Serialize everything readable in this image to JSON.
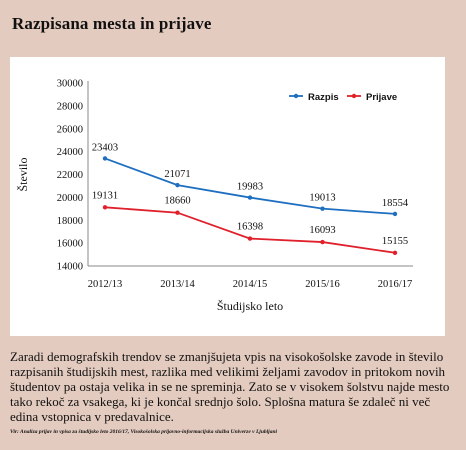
{
  "title": "Razpisana mesta in prijave",
  "chart_data": {
    "type": "line",
    "categories": [
      "2012/13",
      "2013/14",
      "2014/15",
      "2015/16",
      "2016/17"
    ],
    "series": [
      {
        "name": "Razpis",
        "color": "#1f6fc1",
        "values": [
          23403,
          21071,
          19983,
          19013,
          18554
        ],
        "labels": [
          "23403",
          "21071",
          "19983",
          "19013",
          "18554"
        ]
      },
      {
        "name": "Prijave",
        "color": "#e0202a",
        "values": [
          19131,
          18660,
          16398,
          16093,
          15155
        ],
        "labels": [
          "19131",
          "18660",
          "16398",
          "16093",
          "15155"
        ]
      }
    ],
    "xlabel": "Študijsko leto",
    "ylabel": "Število",
    "ylim": [
      14000,
      30000
    ],
    "yticks": [
      "14000",
      "16000",
      "18000",
      "20000",
      "22000",
      "24000",
      "26000",
      "28000",
      "30000"
    ],
    "grid": false,
    "legend": "top-right"
  },
  "caption": "Zaradi demografskih trendov se zmanjšujeta vpis na visokošolske zavode in število razpisanih študijskih mest, razlika med velikimi željami zavodov in pritokom novih študentov pa ostaja velika in se ne spreminja. Zato se v visokem šolstvu najde mesto tako rekoč za vsakega, ki je končal srednjo šolo. Splošna matura še zdaleč ni več edina vstopnica v predavalnice.",
  "source": "Vir: Analiza prijav in vpisa za študijsko leto 2016/17, Visokošolska prijavno-informacijska služba Univerze v Ljubljani"
}
